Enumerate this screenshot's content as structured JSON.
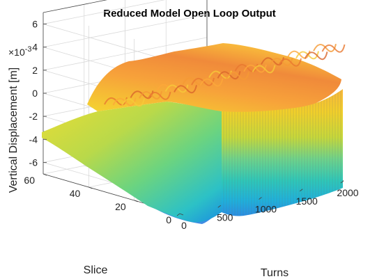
{
  "chart_data": {
    "type": "surface",
    "title": "Reduced Model Open Loop Output",
    "xlabel": "Turns",
    "ylabel": "Slice",
    "zlabel": "Vertical Displacement [m]",
    "z_exponent_label": "×10",
    "z_exponent_power": "-3",
    "xlim": [
      0,
      2000
    ],
    "ylim": [
      0,
      60
    ],
    "zlim": [
      -7,
      7
    ],
    "x_ticks": [
      0,
      500,
      1000,
      1500,
      2000
    ],
    "x_tick_labels": [
      "0",
      "500",
      "1000",
      "1500",
      "2000"
    ],
    "y_ticks": [
      0,
      20,
      40,
      60
    ],
    "y_tick_labels": [
      "0",
      "20",
      "40",
      "60"
    ],
    "z_ticks": [
      6,
      4,
      2,
      0,
      -2,
      -4,
      -6
    ],
    "z_tick_labels": [
      "6",
      "4",
      "2",
      "0",
      "-2",
      "-4",
      "-6"
    ],
    "colormap": "parula",
    "grid": true,
    "surface_summary": {
      "turns": [
        0,
        100,
        200,
        300,
        400,
        500,
        600,
        800,
        1000,
        1200,
        1400,
        1600,
        1800,
        1900
      ],
      "upper_envelope_mm": [
        0.2,
        2.0,
        3.0,
        3.5,
        4.0,
        4.5,
        5.0,
        5.5,
        5.5,
        5.8,
        5.8,
        5.8,
        5.8,
        5.8
      ],
      "lower_envelope_mm": [
        -0.2,
        -2.0,
        -3.0,
        -4.0,
        -5.0,
        -5.5,
        -6.0,
        -6.3,
        -6.3,
        -6.5,
        -6.5,
        -6.5,
        -6.5,
        -6.5
      ]
    }
  }
}
